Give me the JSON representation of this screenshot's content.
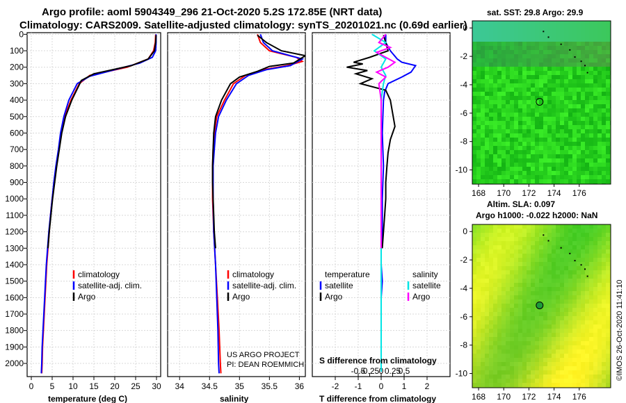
{
  "header": {
    "line1": "Argo profile: aoml 5904349_296 21-Oct-2020 5.2S 172.85E (NRT data)",
    "line2": "Climatology: CARS2009. Satellite-adjusted climatology: synTS_20201021.nc (0.69d earlier)"
  },
  "credit": "©IMOS 26-Oct-2020 11:41:10",
  "colors": {
    "argo": "#000000",
    "climatology": "#ff0000",
    "satellite": "#0000ff",
    "sal_satellite": "#00e5e5",
    "sal_argo": "#ff00ff"
  },
  "depth_ticks": [
    "0",
    "100",
    "200",
    "300",
    "400",
    "500",
    "600",
    "700",
    "800",
    "900",
    "1000",
    "1100",
    "1200",
    "1300",
    "1400",
    "1500",
    "1600",
    "1700",
    "1800",
    "1900",
    "2000"
  ],
  "chart_data": [
    {
      "type": "line",
      "id": "temperature",
      "xlabel": "temperature (deg C)",
      "ylabel": "depth",
      "xlim": [
        -1,
        31
      ],
      "ylim": [
        2080,
        -10
      ],
      "xticks": [
        0,
        5,
        10,
        15,
        20,
        25,
        30
      ],
      "xtick_labels": [
        "0",
        "5",
        "10",
        "15",
        "20",
        "25",
        "30"
      ],
      "legend": [
        "climatology",
        "satellite-adj. clim.",
        "Argo"
      ],
      "series": [
        {
          "name": "climatology",
          "color": "#ff0000",
          "points": [
            [
              29.8,
              0
            ],
            [
              29.7,
              50
            ],
            [
              29.3,
              100
            ],
            [
              28,
              150
            ],
            [
              23,
              200
            ],
            [
              14,
              250
            ],
            [
              11.5,
              300
            ],
            [
              9.5,
              400
            ],
            [
              8,
              500
            ],
            [
              7.2,
              600
            ],
            [
              6.6,
              700
            ],
            [
              6,
              800
            ],
            [
              5.5,
              900
            ],
            [
              5,
              1000
            ],
            [
              4.6,
              1100
            ],
            [
              4.3,
              1200
            ],
            [
              4,
              1300
            ],
            [
              3.7,
              1400
            ],
            [
              3.5,
              1500
            ],
            [
              3.3,
              1600
            ],
            [
              3.1,
              1700
            ],
            [
              2.9,
              1800
            ],
            [
              2.7,
              1900
            ],
            [
              2.6,
              2000
            ],
            [
              2.5,
              2060
            ]
          ]
        },
        {
          "name": "satellite-adj. clim.",
          "color": "#0000ff",
          "points": [
            [
              29.9,
              0
            ],
            [
              29.9,
              50
            ],
            [
              29.8,
              100
            ],
            [
              29,
              140
            ],
            [
              26,
              175
            ],
            [
              20,
              215
            ],
            [
              14,
              255
            ],
            [
              11,
              300
            ],
            [
              9,
              400
            ],
            [
              7.8,
              500
            ],
            [
              7,
              600
            ],
            [
              6.5,
              700
            ],
            [
              5.9,
              800
            ],
            [
              5.4,
              900
            ],
            [
              5,
              1000
            ],
            [
              4.6,
              1100
            ],
            [
              4.2,
              1200
            ],
            [
              3.9,
              1300
            ],
            [
              3.6,
              1400
            ],
            [
              3.4,
              1500
            ],
            [
              3.2,
              1600
            ],
            [
              3,
              1700
            ],
            [
              2.8,
              1800
            ],
            [
              2.6,
              1900
            ],
            [
              2.5,
              2000
            ],
            [
              2.4,
              2060
            ]
          ]
        },
        {
          "name": "Argo",
          "color": "#000000",
          "points": [
            [
              29.9,
              5
            ],
            [
              29.8,
              50
            ],
            [
              29.5,
              100
            ],
            [
              28,
              150
            ],
            [
              24,
              190
            ],
            [
              15,
              240
            ],
            [
              12,
              280
            ],
            [
              9.7,
              400
            ],
            [
              8.2,
              500
            ],
            [
              7.3,
              600
            ],
            [
              6.7,
              700
            ],
            [
              6.1,
              800
            ],
            [
              5.6,
              900
            ],
            [
              5.1,
              1000
            ],
            [
              4.7,
              1100
            ],
            [
              4.3,
              1200
            ],
            [
              4,
              1300
            ]
          ]
        }
      ]
    },
    {
      "type": "line",
      "id": "salinity",
      "xlabel": "salinity",
      "xlim": [
        33.8,
        36.1
      ],
      "ylim": [
        2080,
        -10
      ],
      "xticks": [
        34,
        34.5,
        35,
        35.5,
        36
      ],
      "xtick_labels": [
        "34",
        "34.5",
        "35",
        "35.5",
        "36"
      ],
      "legend": [
        "climatology",
        "satellite-adj. clim.",
        "Argo"
      ],
      "annotations": [
        "US ARGO PROJECT",
        "PI: DEAN ROEMMICH"
      ],
      "series": [
        {
          "name": "climatology",
          "color": "#ff0000",
          "points": [
            [
              35.3,
              0
            ],
            [
              35.35,
              50
            ],
            [
              35.5,
              100
            ],
            [
              35.95,
              140
            ],
            [
              36.05,
              165
            ],
            [
              35.8,
              190
            ],
            [
              35.4,
              215
            ],
            [
              35.1,
              250
            ],
            [
              34.9,
              300
            ],
            [
              34.75,
              400
            ],
            [
              34.62,
              500
            ],
            [
              34.58,
              600
            ],
            [
              34.56,
              700
            ],
            [
              34.55,
              800
            ],
            [
              34.55,
              1000
            ],
            [
              34.57,
              1200
            ],
            [
              34.6,
              1400
            ],
            [
              34.63,
              1600
            ],
            [
              34.66,
              1800
            ],
            [
              34.68,
              2000
            ],
            [
              34.69,
              2060
            ]
          ]
        },
        {
          "name": "satellite-adj. clim.",
          "color": "#0000ff",
          "points": [
            [
              35.35,
              0
            ],
            [
              35.4,
              50
            ],
            [
              35.55,
              100
            ],
            [
              36.05,
              150
            ],
            [
              35.85,
              190
            ],
            [
              35.45,
              215
            ],
            [
              35.15,
              250
            ],
            [
              34.95,
              300
            ],
            [
              34.78,
              400
            ],
            [
              34.65,
              500
            ],
            [
              34.6,
              600
            ],
            [
              34.58,
              700
            ],
            [
              34.56,
              800
            ],
            [
              34.56,
              1000
            ],
            [
              34.57,
              1200
            ],
            [
              34.6,
              1400
            ],
            [
              34.62,
              1600
            ],
            [
              34.64,
              1800
            ],
            [
              34.65,
              2000
            ],
            [
              34.66,
              2060
            ]
          ]
        },
        {
          "name": "Argo",
          "color": "#000000",
          "points": [
            [
              35.3,
              5
            ],
            [
              35.45,
              50
            ],
            [
              35.7,
              100
            ],
            [
              36.1,
              130
            ],
            [
              35.9,
              175
            ],
            [
              35.5,
              195
            ],
            [
              35.3,
              225
            ],
            [
              35,
              260
            ],
            [
              34.85,
              300
            ],
            [
              34.7,
              400
            ],
            [
              34.6,
              500
            ],
            [
              34.57,
              600
            ],
            [
              34.56,
              700
            ],
            [
              34.55,
              800
            ],
            [
              34.55,
              900
            ],
            [
              34.56,
              1000
            ],
            [
              34.57,
              1100
            ],
            [
              34.58,
              1200
            ],
            [
              34.6,
              1300
            ]
          ]
        }
      ]
    },
    {
      "type": "line",
      "id": "difference",
      "xlabel": "T difference from climatology",
      "xlabel_top": "S difference from climatology",
      "xlim": [
        -3,
        3
      ],
      "ylim": [
        2080,
        -10
      ],
      "xticks": [
        -2,
        -1,
        0,
        1,
        2
      ],
      "xtick_labels": [
        "-2",
        "-1",
        "0",
        "1",
        "2"
      ],
      "sticks": [
        -0.5,
        -0.25,
        0,
        0.25,
        0.5
      ],
      "stick_labels": [
        "-0.5",
        "-0.25",
        "0",
        "0.25",
        "0.5"
      ],
      "legend_title_t": "temperature",
      "legend_title_s": "salinity",
      "legend_t": [
        "satellite",
        "Argo"
      ],
      "legend_s": [
        "satellite",
        "Argo"
      ],
      "series": [
        {
          "name": "T satellite",
          "color": "#0000ff",
          "points": [
            [
              0.2,
              0
            ],
            [
              0.2,
              50
            ],
            [
              0.4,
              100
            ],
            [
              0.7,
              150
            ],
            [
              0.9,
              170
            ],
            [
              1.5,
              190
            ],
            [
              1.3,
              230
            ],
            [
              0.9,
              260
            ],
            [
              0.3,
              300
            ],
            [
              0.15,
              350
            ],
            [
              0.1,
              400
            ],
            [
              0.05,
              600
            ],
            [
              0.1,
              800
            ],
            [
              0.05,
              1000
            ],
            [
              0.05,
              1200
            ],
            [
              0,
              1300
            ],
            [
              0,
              1400
            ],
            [
              0.05,
              1500
            ],
            [
              0,
              1600
            ],
            [
              0,
              1800
            ],
            [
              0,
              2000
            ],
            [
              0,
              2050
            ]
          ]
        },
        {
          "name": "T Argo",
          "color": "#000000",
          "points": [
            [
              0.1,
              5
            ],
            [
              0.2,
              50
            ],
            [
              0.3,
              100
            ],
            [
              -0.5,
              140
            ],
            [
              -1.2,
              170
            ],
            [
              -0.8,
              180
            ],
            [
              -1.5,
              200
            ],
            [
              -0.6,
              220
            ],
            [
              -1.1,
              240
            ],
            [
              -0.4,
              270
            ],
            [
              -0.9,
              300
            ],
            [
              0.2,
              340
            ],
            [
              0.4,
              400
            ],
            [
              0.5,
              480
            ],
            [
              0.6,
              560
            ],
            [
              0.4,
              640
            ],
            [
              0.3,
              720
            ],
            [
              0.25,
              800
            ],
            [
              0.2,
              900
            ],
            [
              0.2,
              1000
            ],
            [
              0.15,
              1100
            ],
            [
              0.1,
              1200
            ],
            [
              0.05,
              1300
            ]
          ]
        },
        {
          "name": "S satellite",
          "color": "#00e5e5",
          "points": [
            [
              -0.2,
              0
            ],
            [
              0.1,
              50
            ],
            [
              -0.15,
              100
            ],
            [
              0.1,
              150
            ],
            [
              0,
              200
            ],
            [
              0.1,
              250
            ],
            [
              0.05,
              300
            ],
            [
              0,
              400
            ],
            [
              0,
              600
            ],
            [
              0,
              800
            ],
            [
              0,
              1000
            ],
            [
              0,
              1200
            ],
            [
              0,
              1400
            ],
            [
              0,
              1600
            ],
            [
              0,
              1800
            ],
            [
              0,
              2000
            ],
            [
              0,
              2050
            ]
          ]
        },
        {
          "name": "S Argo",
          "color": "#ff00ff",
          "points": [
            [
              0.1,
              0
            ],
            [
              -0.05,
              50
            ],
            [
              0.2,
              80
            ],
            [
              -0.1,
              110
            ],
            [
              0.1,
              140
            ],
            [
              0.3,
              170
            ],
            [
              0.15,
              200
            ],
            [
              -0.1,
              230
            ],
            [
              0.1,
              260
            ],
            [
              -0.05,
              300
            ],
            [
              0,
              400
            ],
            [
              0,
              600
            ],
            [
              0,
              800
            ],
            [
              0,
              1000
            ],
            [
              0,
              1200
            ],
            [
              0,
              1300
            ]
          ]
        }
      ]
    },
    {
      "type": "heatmap",
      "id": "sst-map",
      "title": "sat. SST: 29.8 Argo: 29.9",
      "xlim": [
        167.5,
        178.5
      ],
      "ylim": [
        -11,
        0.5
      ],
      "xticks": [
        168,
        170,
        172,
        174,
        176
      ],
      "xtick_labels": [
        "168",
        "170",
        "172",
        "174",
        "176"
      ],
      "yticks": [
        0,
        -2,
        -4,
        -6,
        -8,
        -10
      ],
      "ytick_labels": [
        "0",
        "-2",
        "-4",
        "-6",
        "-8",
        "-10"
      ],
      "profile_location": [
        172.85,
        -5.2
      ]
    },
    {
      "type": "heatmap",
      "id": "sla-map",
      "title_line1": "Altim. SLA: 0.097",
      "title_line2": "Argo h1000: -0.022 h2000: NaN",
      "xlim": [
        167.5,
        178.5
      ],
      "ylim": [
        -11,
        0.5
      ],
      "xticks": [
        168,
        170,
        172,
        174,
        176
      ],
      "xtick_labels": [
        "168",
        "170",
        "172",
        "174",
        "176"
      ],
      "yticks": [
        0,
        -2,
        -4,
        -6,
        -8,
        -10
      ],
      "ytick_labels": [
        "0",
        "-2",
        "-4",
        "-6",
        "-8",
        "-10"
      ],
      "profile_location": [
        172.85,
        -5.2
      ]
    }
  ]
}
